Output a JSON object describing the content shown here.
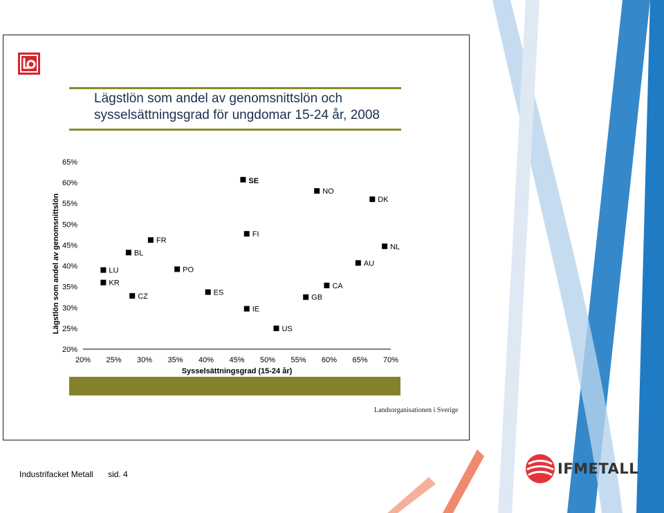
{
  "slide": {
    "title_line1": "Lägstlön som andel av genomsnittslön och",
    "title_line2": "sysselsättningsgrad för ungdomar 15-24 år, 2008",
    "organization": "Landsorganisationen i Sverige",
    "footer_left": "Industrifacket Metall",
    "footer_page": "sid. 4",
    "brand_name": "IFMETALL"
  },
  "colors": {
    "olive": "#83822a",
    "highlight": "#e8202a",
    "navy": "#1b2f4f",
    "blue_stripe": "#1f7bc4",
    "salmon_stripe": "#f08a6e"
  },
  "chart_data": {
    "type": "scatter",
    "xlabel": "Sysselsättningsgrad (15-24 år)",
    "ylabel": "Lägstlön som andel av genomsnittslön",
    "xlim": [
      0.2,
      0.7
    ],
    "ylim": [
      0.2,
      0.65
    ],
    "x_ticks": [
      "20%",
      "25%",
      "30%",
      "35%",
      "40%",
      "45%",
      "50%",
      "55%",
      "60%",
      "65%",
      "70%"
    ],
    "y_ticks": [
      "20%",
      "25%",
      "30%",
      "35%",
      "40%",
      "45%",
      "50%",
      "55%",
      "60%",
      "65%"
    ],
    "points": [
      {
        "label": "SE",
        "x": 0.46,
        "y": 0.607,
        "highlight": true
      },
      {
        "label": "NO",
        "x": 0.58,
        "y": 0.58
      },
      {
        "label": "DK",
        "x": 0.67,
        "y": 0.56
      },
      {
        "label": "FI",
        "x": 0.466,
        "y": 0.477
      },
      {
        "label": "FR",
        "x": 0.31,
        "y": 0.462
      },
      {
        "label": "NL",
        "x": 0.69,
        "y": 0.447
      },
      {
        "label": "BL",
        "x": 0.274,
        "y": 0.432
      },
      {
        "label": "AU",
        "x": 0.647,
        "y": 0.407
      },
      {
        "label": "PO",
        "x": 0.353,
        "y": 0.392
      },
      {
        "label": "LU",
        "x": 0.233,
        "y": 0.39
      },
      {
        "label": "KR",
        "x": 0.233,
        "y": 0.36
      },
      {
        "label": "CA",
        "x": 0.596,
        "y": 0.353
      },
      {
        "label": "ES",
        "x": 0.403,
        "y": 0.337
      },
      {
        "label": "CZ",
        "x": 0.28,
        "y": 0.328
      },
      {
        "label": "GB",
        "x": 0.562,
        "y": 0.325
      },
      {
        "label": "IE",
        "x": 0.466,
        "y": 0.297
      },
      {
        "label": "US",
        "x": 0.514,
        "y": 0.25
      }
    ]
  }
}
